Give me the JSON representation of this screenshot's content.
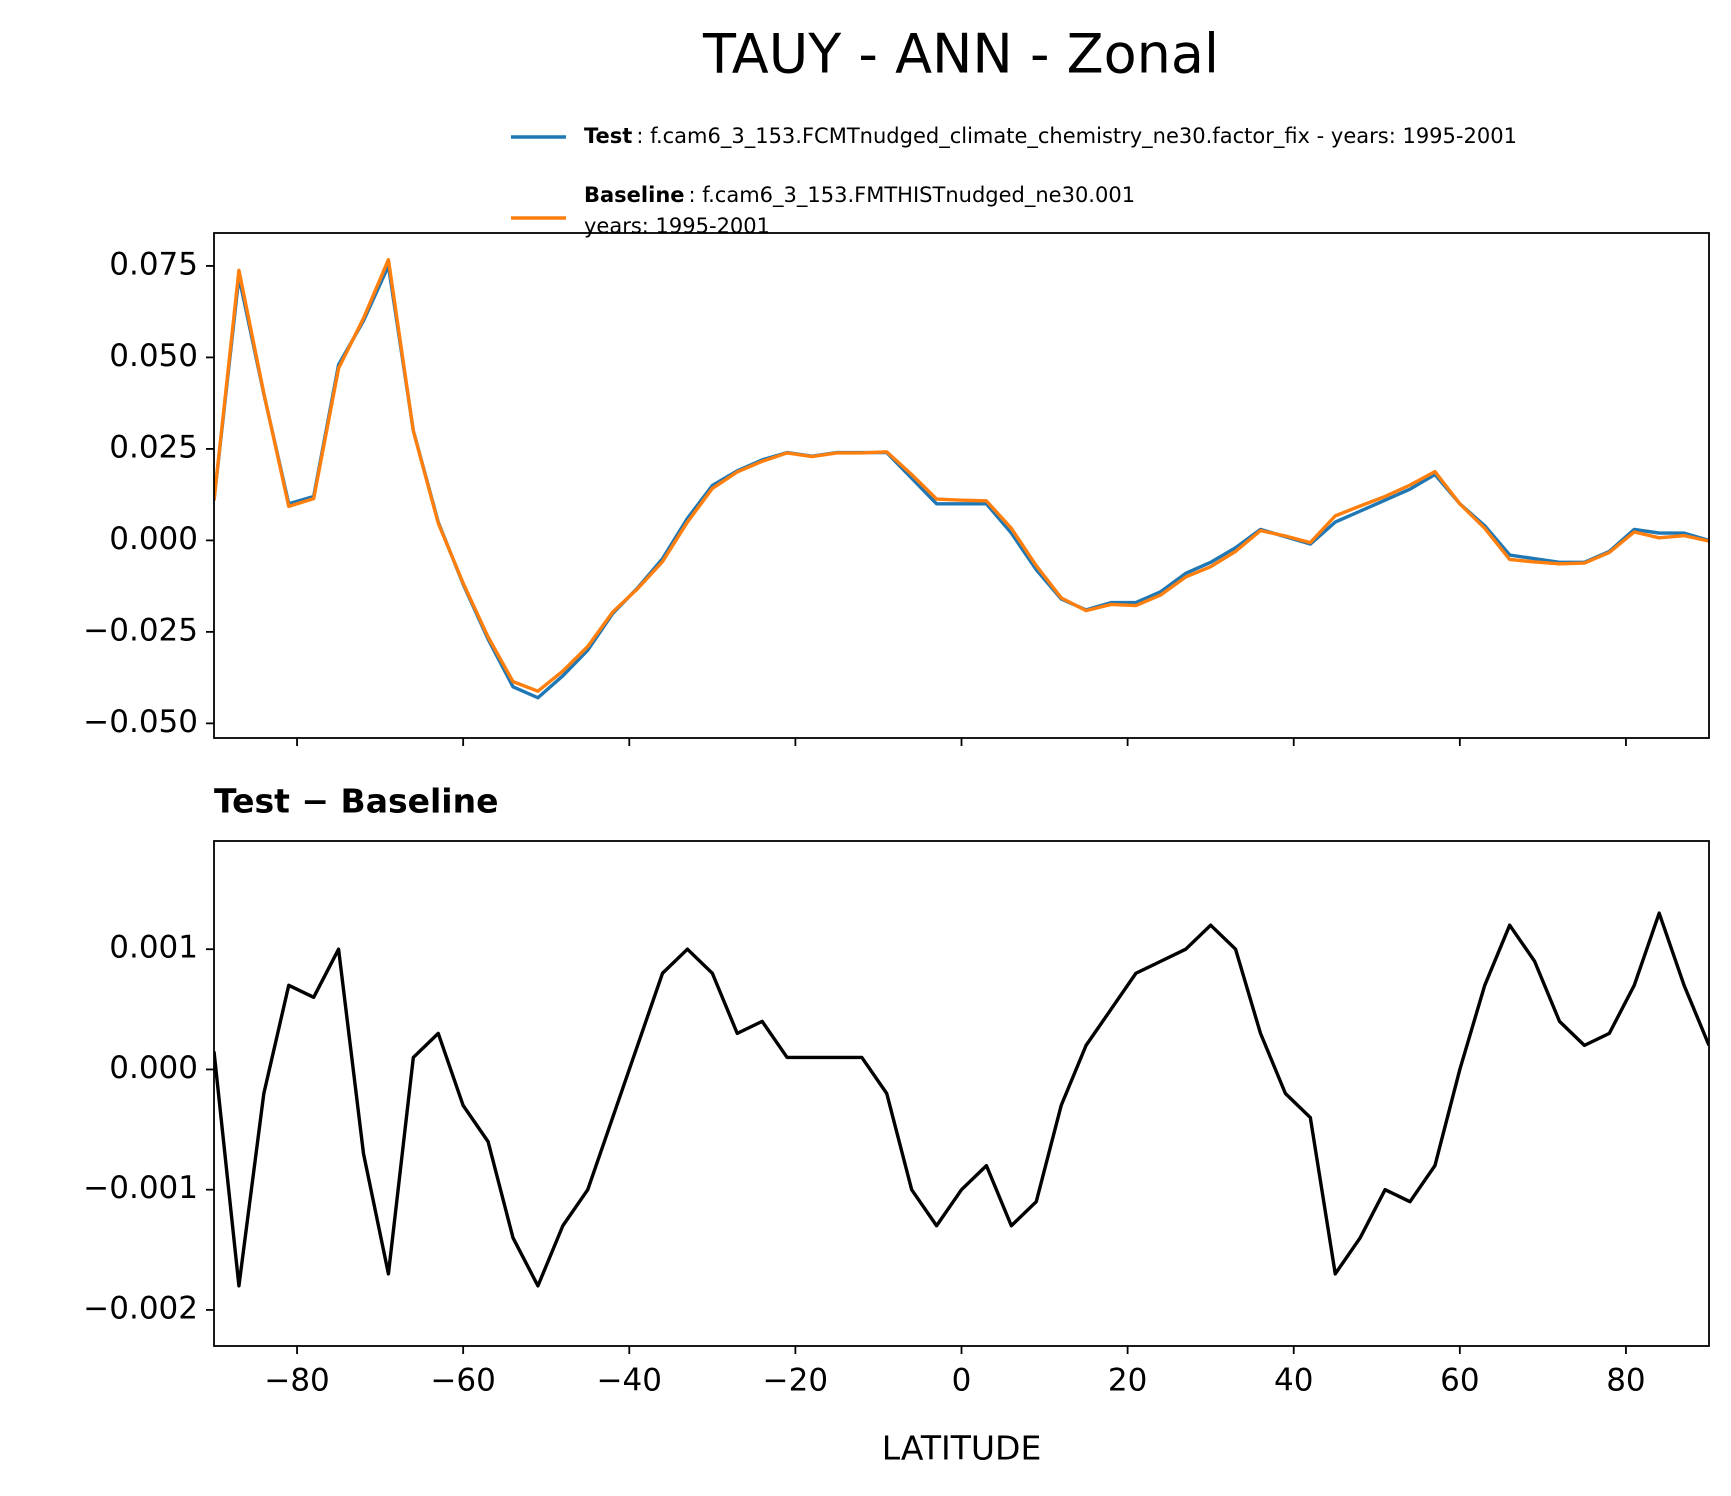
{
  "chart_data": [
    {
      "type": "line",
      "title": "TAUY - ANN - Zonal",
      "x": [
        -90,
        -87,
        -84,
        -81,
        -78,
        -75,
        -72,
        -69,
        -66,
        -63,
        -60,
        -57,
        -54,
        -51,
        -48,
        -45,
        -42,
        -39,
        -36,
        -33,
        -30,
        -27,
        -24,
        -21,
        -18,
        -15,
        -12,
        -9,
        -6,
        -3,
        0,
        3,
        6,
        9,
        12,
        15,
        18,
        21,
        24,
        27,
        30,
        33,
        36,
        39,
        42,
        45,
        48,
        51,
        54,
        57,
        60,
        63,
        66,
        69,
        72,
        75,
        78,
        81,
        84,
        87,
        90
      ],
      "series": [
        {
          "name": "Test",
          "description": [
            ": f.cam6_3_153.FCMTnudged_climate_chemistry_ne30.factor_fix - years: 1995-2001"
          ],
          "color": "#1f77b4",
          "values": [
            0.011,
            0.072,
            0.04,
            0.01,
            0.012,
            0.048,
            0.06,
            0.075,
            0.03,
            0.005,
            -0.012,
            -0.027,
            -0.04,
            -0.043,
            -0.037,
            -0.03,
            -0.02,
            -0.013,
            -0.005,
            0.006,
            0.015,
            0.019,
            0.022,
            0.024,
            0.023,
            0.024,
            0.024,
            0.024,
            0.017,
            0.01,
            0.01,
            0.01,
            0.002,
            -0.008,
            -0.016,
            -0.019,
            -0.017,
            -0.017,
            -0.014,
            -0.009,
            -0.006,
            -0.002,
            0.003,
            0.001,
            -0.001,
            0.005,
            0.008,
            0.011,
            0.014,
            0.018,
            0.01,
            0.004,
            -0.004,
            -0.005,
            -0.006,
            -0.006,
            -0.003,
            0.003,
            0.002,
            0.002,
            0.0
          ]
        },
        {
          "name": "Baseline",
          "description": [
            ": f.cam6_3_153.FMTHISTnudged_ne30.001",
            "years: 1995-2001"
          ],
          "color": "#ff7f0e",
          "values": [
            0.0109,
            0.0738,
            0.0402,
            0.0093,
            0.0114,
            0.047,
            0.0607,
            0.0767,
            0.0299,
            0.0047,
            -0.0117,
            -0.0264,
            -0.0386,
            -0.0412,
            -0.0357,
            -0.029,
            -0.0196,
            -0.0132,
            -0.0058,
            0.005,
            0.0142,
            0.0187,
            0.0216,
            0.0239,
            0.0229,
            0.0239,
            0.0239,
            0.0242,
            0.018,
            0.0113,
            0.011,
            0.0108,
            0.0033,
            -0.0069,
            -0.0157,
            -0.0192,
            -0.0175,
            -0.0178,
            -0.0149,
            -0.01,
            -0.0072,
            -0.003,
            0.0027,
            0.0012,
            -0.0006,
            0.0067,
            0.0094,
            0.012,
            0.0151,
            0.0188,
            0.01,
            0.0033,
            -0.0052,
            -0.0059,
            -0.0064,
            -0.0062,
            -0.0033,
            0.0023,
            0.0007,
            0.0013,
            -0.0002
          ]
        }
      ],
      "xlim": [
        -90,
        90
      ],
      "xticks": [
        {
          "value": -80,
          "label": "−80"
        },
        {
          "value": -60,
          "label": "−60"
        },
        {
          "value": -40,
          "label": "−40"
        },
        {
          "value": -20,
          "label": "−20"
        },
        0,
        20,
        40,
        60,
        80
      ],
      "ylim": [
        -0.054,
        0.084
      ],
      "yticks": [
        {
          "value": -0.05,
          "label": "−0.050"
        },
        {
          "value": -0.025,
          "label": "−0.025"
        },
        {
          "value": 0,
          "label": "0.000"
        },
        0.025,
        {
          "value": 0.05,
          "label": "0.050"
        },
        0.075
      ]
    },
    {
      "type": "line",
      "title": "Test − Baseline",
      "xlabel": "LATITUDE",
      "x": [
        -90,
        -87,
        -84,
        -81,
        -78,
        -75,
        -72,
        -69,
        -66,
        -63,
        -60,
        -57,
        -54,
        -51,
        -48,
        -45,
        -42,
        -39,
        -36,
        -33,
        -30,
        -27,
        -24,
        -21,
        -18,
        -15,
        -12,
        -9,
        -6,
        -3,
        0,
        3,
        6,
        9,
        12,
        15,
        18,
        21,
        24,
        27,
        30,
        33,
        36,
        39,
        42,
        45,
        48,
        51,
        54,
        57,
        60,
        63,
        66,
        69,
        72,
        75,
        78,
        81,
        84,
        87,
        90
      ],
      "series": [
        {
          "color": "#000000",
          "values": [
            0.00015,
            -0.0018,
            -0.0002,
            0.0007,
            0.0006,
            0.001,
            -0.0007,
            -0.0017,
            0.0001,
            0.0003,
            -0.0003,
            -0.0006,
            -0.0014,
            -0.0018,
            -0.0013,
            -0.001,
            -0.0004,
            0.0002,
            0.0008,
            0.001,
            0.0008,
            0.0003,
            0.0004,
            0.0001,
            0.0001,
            0.0001,
            0.0001,
            -0.0002,
            -0.001,
            -0.0013,
            -0.001,
            -0.0008,
            -0.0013,
            -0.0011,
            -0.0003,
            0.0002,
            0.0005,
            0.0008,
            0.0009,
            0.001,
            0.0012,
            0.001,
            0.0003,
            -0.0002,
            -0.0004,
            -0.0017,
            -0.0014,
            -0.001,
            -0.0011,
            -0.0008,
            0.0,
            0.0007,
            0.0012,
            0.0009,
            0.0004,
            0.0002,
            0.0003,
            0.0007,
            0.0013,
            0.0007,
            0.0002
          ]
        }
      ],
      "xlim": [
        -90,
        90
      ],
      "xticks": [
        {
          "value": -80,
          "label": "−80"
        },
        {
          "value": -60,
          "label": "−60"
        },
        {
          "value": -40,
          "label": "−40"
        },
        {
          "value": -20,
          "label": "−20"
        },
        0,
        20,
        40,
        60,
        80
      ],
      "ylim": [
        -0.0023,
        0.0019
      ],
      "yticks": [
        {
          "value": -0.002,
          "label": "−0.002"
        },
        {
          "value": -0.001,
          "label": "−0.001"
        },
        {
          "value": 0,
          "label": "0.000"
        },
        0.001
      ]
    }
  ]
}
